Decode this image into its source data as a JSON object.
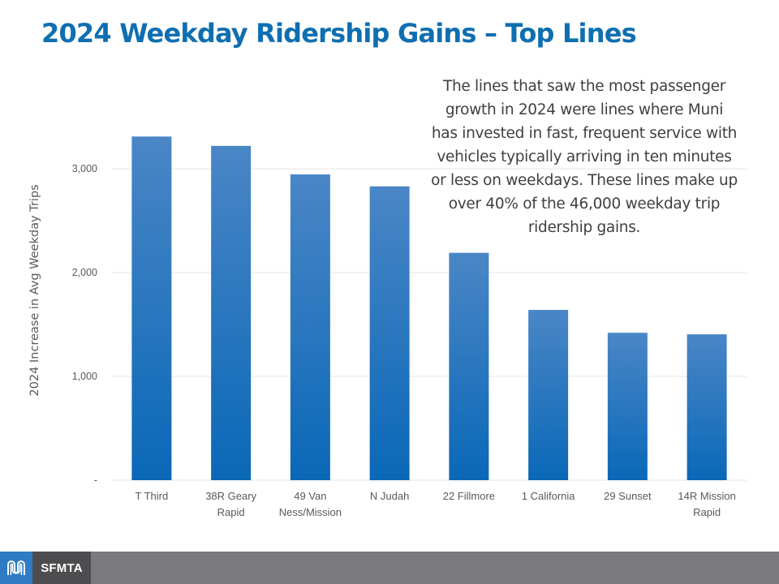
{
  "slide": {
    "title": "2024 Weekday Ridership Gains – Top Lines",
    "callout": "The lines that saw the most passenger growth in 2024 were lines where Muni has invested in fast, frequent service with vehicles typically arriving in ten minutes or less on weekdays. These lines make up over 40% of the 46,000 weekday trip ridership gains.",
    "callout_lines": [
      "The lines that saw the most passenger",
      "growth in 2024 were lines where Muni",
      "has invested in fast, frequent service with",
      "vehicles typically arriving in ten minutes",
      "or less on weekdays. These lines make up",
      "over 40% of the 46,000 weekday trip",
      "ridership gains."
    ]
  },
  "footer": {
    "brand": "SFMTA",
    "logo_icon": "muni-worm-logo-icon",
    "colors": {
      "logo_bg": "#2f7cc4",
      "brand_bg": "#4d4d4f",
      "bar_bg": "#7a7a7d"
    }
  },
  "chart_data": {
    "type": "bar",
    "title": "",
    "xlabel": "",
    "ylabel": "2024 Increase in Avg Weekday Trips",
    "categories": [
      [
        "T Third"
      ],
      [
        "38R Geary",
        "Rapid"
      ],
      [
        "49 Van",
        "Ness/Mission"
      ],
      [
        "N Judah"
      ],
      [
        "22 Fillmore"
      ],
      [
        "1 California"
      ],
      [
        "29 Sunset"
      ],
      [
        "14R Mission",
        "Rapid"
      ]
    ],
    "category_names": [
      "T Third",
      "38R Geary Rapid",
      "49 Van Ness/Mission",
      "N Judah",
      "22 Fillmore",
      "1 California",
      "29 Sunset",
      "14R Mission Rapid"
    ],
    "values": [
      3310,
      3220,
      2945,
      2830,
      2190,
      1640,
      1420,
      1405
    ],
    "ylim": [
      0,
      3300
    ],
    "yticks": [
      0,
      1000,
      2000,
      3000
    ],
    "ytick_labels": [
      "-",
      "1,000",
      "2,000",
      "3,000"
    ],
    "grid": true,
    "legend": "none",
    "colors": {
      "bar_top": "#4a86c6",
      "bar_bottom": "#0a68b7",
      "grid": "#e6e6e6",
      "tick_text": "#595959"
    }
  }
}
